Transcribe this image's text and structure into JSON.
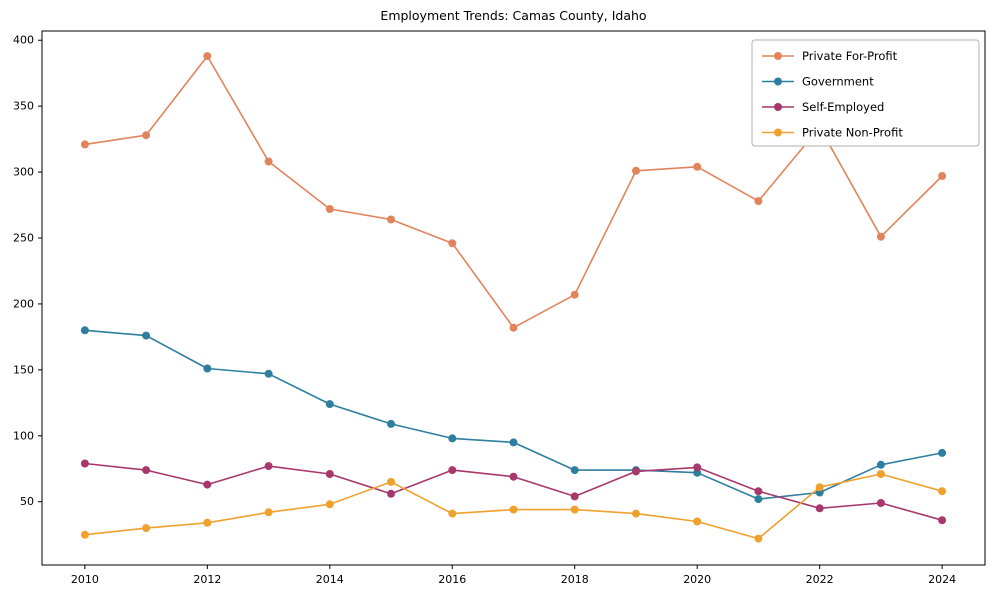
{
  "chart_data": {
    "type": "line",
    "title": "Employment Trends: Camas County, Idaho",
    "xlabel": "",
    "ylabel": "",
    "x": [
      2010,
      2011,
      2012,
      2013,
      2014,
      2015,
      2016,
      2017,
      2018,
      2019,
      2020,
      2021,
      2022,
      2023,
      2024
    ],
    "series": [
      {
        "name": "Private For-Profit",
        "color": "#e1845c",
        "values": [
          321,
          328,
          388,
          308,
          272,
          264,
          246,
          182,
          207,
          301,
          304,
          278,
          334,
          251,
          297
        ]
      },
      {
        "name": "Government",
        "color": "#2e7e9f",
        "values": [
          180,
          176,
          151,
          147,
          124,
          109,
          98,
          95,
          74,
          74,
          72,
          52,
          57,
          78,
          87
        ]
      },
      {
        "name": "Self-Employed",
        "color": "#a8376c",
        "values": [
          79,
          74,
          63,
          77,
          71,
          56,
          74,
          69,
          54,
          73,
          76,
          58,
          45,
          49,
          36
        ]
      },
      {
        "name": "Private Non-Profit",
        "color": "#efa12e",
        "values": [
          25,
          30,
          34,
          42,
          48,
          65,
          41,
          44,
          44,
          41,
          35,
          22,
          61,
          71,
          58
        ]
      }
    ],
    "xticks": [
      2010,
      2012,
      2014,
      2016,
      2018,
      2020,
      2022,
      2024
    ],
    "yticks": [
      50,
      100,
      150,
      200,
      250,
      300,
      350,
      400
    ],
    "xlim": [
      2009.3,
      2024.7
    ],
    "ylim": [
      2,
      407
    ],
    "grid": false,
    "marker": "o",
    "legend_position": "upper right"
  }
}
